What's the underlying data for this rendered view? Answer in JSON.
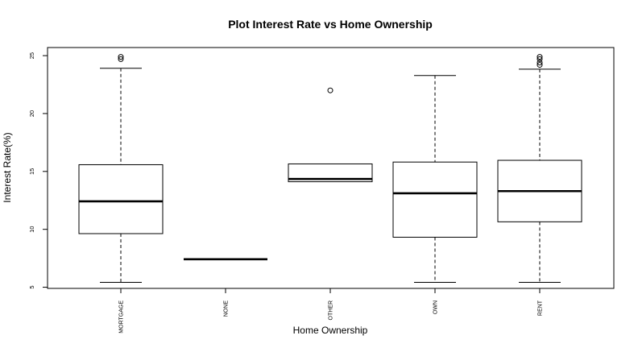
{
  "chart_data": {
    "type": "boxplot",
    "title": "Plot Interest Rate vs Home Ownership",
    "xlabel": "Home Ownership",
    "ylabel": "Interest Rate(%)",
    "ylim": [
      4.9,
      25.7
    ],
    "yticks": [
      5,
      10,
      15,
      20,
      25
    ],
    "grid": false,
    "categories": [
      "MORTGAGE",
      "NONE",
      "OTHER",
      "OWN",
      "RENT"
    ],
    "boxes": [
      {
        "category": "MORTGAGE",
        "whisker_low": 5.42,
        "q1": 9.63,
        "median": 12.42,
        "q3": 15.58,
        "whisker_high": 23.91,
        "outliers": [
          24.7,
          24.89
        ]
      },
      {
        "category": "NONE",
        "whisker_low": 7.42,
        "q1": 7.42,
        "median": 7.42,
        "q3": 7.42,
        "whisker_high": 7.42,
        "outliers": []
      },
      {
        "category": "OTHER",
        "whisker_low": 14.11,
        "q1": 14.11,
        "median": 14.35,
        "q3": 15.65,
        "whisker_high": 15.65,
        "outliers": [
          22.0
        ]
      },
      {
        "category": "OWN",
        "whisker_low": 5.42,
        "q1": 9.32,
        "median": 13.11,
        "q3": 15.81,
        "whisker_high": 23.28,
        "outliers": []
      },
      {
        "category": "RENT",
        "whisker_low": 5.42,
        "q1": 10.65,
        "median": 13.3,
        "q3": 15.96,
        "whisker_high": 23.83,
        "outliers": [
          24.2,
          24.4,
          24.7,
          24.89
        ]
      }
    ]
  }
}
